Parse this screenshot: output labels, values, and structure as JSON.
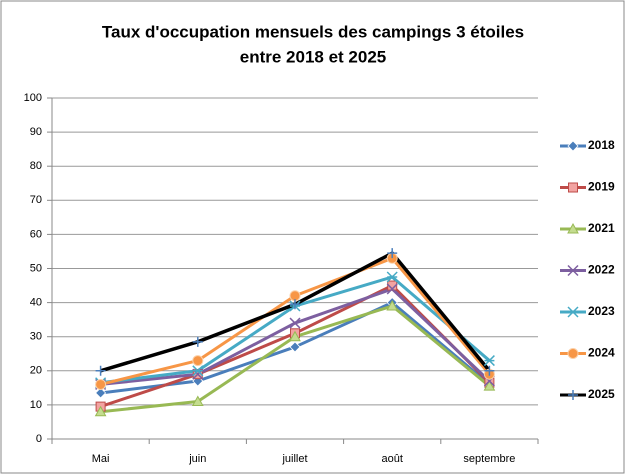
{
  "chart_data": {
    "type": "line",
    "title": [
      "Taux d'occupation mensuels des campings 3  étoiles",
      "entre 2018 et 2025"
    ],
    "categories": [
      "Mai",
      "juin",
      "juillet",
      "août",
      "septembre"
    ],
    "series": [
      {
        "name": "2018",
        "color": "#4a7ebb",
        "marker": "diamond",
        "values": [
          13.5,
          17,
          27,
          40,
          16
        ]
      },
      {
        "name": "2019",
        "color": "#be4b48",
        "marker": "square",
        "values": [
          9.5,
          19,
          31,
          45,
          16.5
        ]
      },
      {
        "name": "2021",
        "color": "#98b954",
        "marker": "triangle",
        "values": [
          8,
          11,
          30,
          39,
          15.5
        ]
      },
      {
        "name": "2022",
        "color": "#7d5fa0",
        "marker": "x",
        "values": [
          16,
          19,
          34,
          44,
          17
        ]
      },
      {
        "name": "2023",
        "color": "#46aac5",
        "marker": "star",
        "values": [
          16.5,
          20,
          39,
          47.5,
          23
        ]
      },
      {
        "name": "2024",
        "color": "#f79646",
        "marker": "circle",
        "values": [
          16,
          23,
          42,
          53,
          19
        ]
      },
      {
        "name": "2025",
        "color": "#000000",
        "marker": "plus",
        "values": [
          20,
          28.5,
          39.5,
          54.5,
          20
        ]
      }
    ],
    "ylim": [
      0,
      100
    ],
    "yticks": [
      0,
      10,
      20,
      30,
      40,
      50,
      60,
      70,
      80,
      90,
      100
    ],
    "grid": true,
    "legend": "right"
  }
}
